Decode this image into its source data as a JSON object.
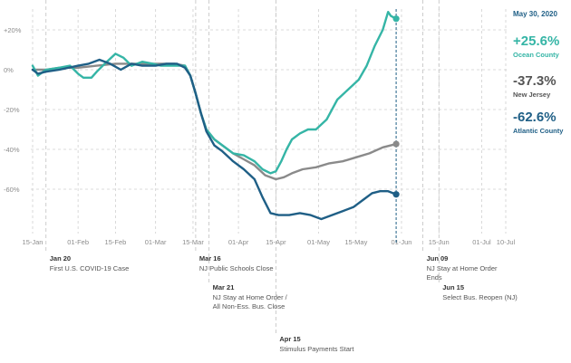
{
  "colors": {
    "ocean": "#35b5a6",
    "nj": "#8a8a8a",
    "atlantic": "#1f5f86",
    "grid": "#d0d0d0",
    "event_line": "#c0c0c0",
    "date_line": "#1f5f86"
  },
  "legend": {
    "date": "May 30, 2020",
    "entries": [
      {
        "value": "+25.6%",
        "name": "Ocean County",
        "color": "#35b5a6"
      },
      {
        "value": "-37.3%",
        "name": "New Jersey",
        "color": "#555555"
      },
      {
        "value": "-62.6%",
        "name": "Atlantic County",
        "color": "#1f5f86"
      }
    ]
  },
  "chart_data": {
    "type": "line",
    "title": "",
    "xlabel": "",
    "ylabel": "",
    "ylim": [
      -80,
      30
    ],
    "y_ticks": [
      20,
      0,
      -20,
      -40,
      -60
    ],
    "y_tick_labels": [
      "+20%",
      "0%",
      "-20%",
      "-40%",
      "-60%"
    ],
    "x_ticks": [
      "2020-01-15",
      "2020-02-01",
      "2020-02-15",
      "2020-03-01",
      "2020-03-15",
      "2020-04-01",
      "2020-04-15",
      "2020-05-01",
      "2020-05-15",
      "2020-06-01",
      "2020-06-15",
      "2020-07-01",
      "2020-07-10"
    ],
    "x_tick_labels": [
      "15-Jan",
      "01-Feb",
      "15-Feb",
      "01-Mar",
      "15-Mar",
      "01-Apr",
      "15-Apr",
      "01-May",
      "15-May",
      "01-Jun",
      "15-Jun",
      "01-Jul",
      "10-Jul"
    ],
    "grid": true,
    "end_date": "2020-05-30",
    "series": [
      {
        "name": "Ocean County",
        "color": "#35b5a6",
        "points": [
          [
            "2020-01-15",
            2
          ],
          [
            "2020-01-17",
            -3
          ],
          [
            "2020-01-20",
            0
          ],
          [
            "2020-01-25",
            1
          ],
          [
            "2020-01-29",
            2
          ],
          [
            "2020-02-01",
            -2
          ],
          [
            "2020-02-03",
            -4
          ],
          [
            "2020-02-06",
            -4
          ],
          [
            "2020-02-08",
            -1
          ],
          [
            "2020-02-11",
            3
          ],
          [
            "2020-02-15",
            8
          ],
          [
            "2020-02-18",
            6
          ],
          [
            "2020-02-21",
            2
          ],
          [
            "2020-02-25",
            4
          ],
          [
            "2020-02-29",
            3
          ],
          [
            "2020-03-03",
            2
          ],
          [
            "2020-03-06",
            2
          ],
          [
            "2020-03-09",
            2
          ],
          [
            "2020-03-12",
            2
          ],
          [
            "2020-03-14",
            -3
          ],
          [
            "2020-03-16",
            -12
          ],
          [
            "2020-03-18",
            -22
          ],
          [
            "2020-03-20",
            -30
          ],
          [
            "2020-03-23",
            -35
          ],
          [
            "2020-03-26",
            -38
          ],
          [
            "2020-03-30",
            -42
          ],
          [
            "2020-04-03",
            -43
          ],
          [
            "2020-04-07",
            -46
          ],
          [
            "2020-04-10",
            -50
          ],
          [
            "2020-04-13",
            -52
          ],
          [
            "2020-04-15",
            -51
          ],
          [
            "2020-04-17",
            -46
          ],
          [
            "2020-04-19",
            -40
          ],
          [
            "2020-04-21",
            -35
          ],
          [
            "2020-04-24",
            -32
          ],
          [
            "2020-04-27",
            -30
          ],
          [
            "2020-04-30",
            -30
          ],
          [
            "2020-05-04",
            -25
          ],
          [
            "2020-05-08",
            -15
          ],
          [
            "2020-05-12",
            -10
          ],
          [
            "2020-05-16",
            -5
          ],
          [
            "2020-05-19",
            2
          ],
          [
            "2020-05-22",
            12
          ],
          [
            "2020-05-25",
            20
          ],
          [
            "2020-05-27",
            29
          ],
          [
            "2020-05-28",
            27
          ],
          [
            "2020-05-30",
            25.6
          ]
        ]
      },
      {
        "name": "New Jersey",
        "color": "#8a8a8a",
        "points": [
          [
            "2020-01-15",
            0
          ],
          [
            "2020-01-20",
            0
          ],
          [
            "2020-01-25",
            1
          ],
          [
            "2020-02-01",
            1
          ],
          [
            "2020-02-08",
            2
          ],
          [
            "2020-02-15",
            3
          ],
          [
            "2020-02-22",
            3
          ],
          [
            "2020-03-01",
            3
          ],
          [
            "2020-03-08",
            3
          ],
          [
            "2020-03-12",
            2
          ],
          [
            "2020-03-14",
            -3
          ],
          [
            "2020-03-16",
            -12
          ],
          [
            "2020-03-18",
            -22
          ],
          [
            "2020-03-20",
            -30
          ],
          [
            "2020-03-23",
            -35
          ],
          [
            "2020-03-26",
            -38
          ],
          [
            "2020-03-30",
            -42
          ],
          [
            "2020-04-03",
            -45
          ],
          [
            "2020-04-07",
            -48
          ],
          [
            "2020-04-11",
            -53
          ],
          [
            "2020-04-15",
            -55
          ],
          [
            "2020-04-18",
            -54
          ],
          [
            "2020-04-21",
            -52
          ],
          [
            "2020-04-25",
            -50
          ],
          [
            "2020-04-30",
            -49
          ],
          [
            "2020-05-05",
            -47
          ],
          [
            "2020-05-10",
            -46
          ],
          [
            "2020-05-15",
            -44
          ],
          [
            "2020-05-20",
            -42
          ],
          [
            "2020-05-25",
            -39
          ],
          [
            "2020-05-30",
            -37.3
          ]
        ]
      },
      {
        "name": "Atlantic County",
        "color": "#1f5f86",
        "points": [
          [
            "2020-01-15",
            0
          ],
          [
            "2020-01-17",
            -2
          ],
          [
            "2020-01-20",
            -1
          ],
          [
            "2020-01-25",
            0
          ],
          [
            "2020-02-01",
            2
          ],
          [
            "2020-02-05",
            3
          ],
          [
            "2020-02-09",
            5
          ],
          [
            "2020-02-13",
            3
          ],
          [
            "2020-02-17",
            0
          ],
          [
            "2020-02-21",
            3
          ],
          [
            "2020-02-25",
            2
          ],
          [
            "2020-03-01",
            2
          ],
          [
            "2020-03-05",
            3
          ],
          [
            "2020-03-09",
            3
          ],
          [
            "2020-03-12",
            1
          ],
          [
            "2020-03-14",
            -3
          ],
          [
            "2020-03-16",
            -12
          ],
          [
            "2020-03-18",
            -22
          ],
          [
            "2020-03-20",
            -31
          ],
          [
            "2020-03-23",
            -38
          ],
          [
            "2020-03-26",
            -41
          ],
          [
            "2020-03-30",
            -46
          ],
          [
            "2020-04-03",
            -50
          ],
          [
            "2020-04-07",
            -55
          ],
          [
            "2020-04-10",
            -64
          ],
          [
            "2020-04-13",
            -72
          ],
          [
            "2020-04-16",
            -73
          ],
          [
            "2020-04-20",
            -73
          ],
          [
            "2020-04-24",
            -72
          ],
          [
            "2020-04-28",
            -73
          ],
          [
            "2020-05-02",
            -75
          ],
          [
            "2020-05-06",
            -73
          ],
          [
            "2020-05-10",
            -71
          ],
          [
            "2020-05-14",
            -69
          ],
          [
            "2020-05-18",
            -65
          ],
          [
            "2020-05-21",
            -62
          ],
          [
            "2020-05-24",
            -61
          ],
          [
            "2020-05-27",
            -61
          ],
          [
            "2020-05-30",
            -62.6
          ]
        ]
      }
    ],
    "annotations": [
      {
        "date": "2020-01-20",
        "label_date": "Jan 20",
        "lines": [
          "First U.S. COVID-19 Case"
        ],
        "row": 0
      },
      {
        "date": "2020-03-16",
        "label_date": "Mar 16",
        "lines": [
          "NJ Public Schools Close"
        ],
        "row": 0
      },
      {
        "date": "2020-03-21",
        "label_date": "Mar 21",
        "lines": [
          "NJ Stay at Home Order /",
          "All Non-Ess. Bus. Close"
        ],
        "row": 1
      },
      {
        "date": "2020-04-15",
        "label_date": "Apr 15",
        "lines": [
          "Stimulus Payments Start"
        ],
        "row": 2
      },
      {
        "date": "2020-06-09",
        "label_date": "Jun 09",
        "lines": [
          "NJ Stay at Home Order",
          "Ends"
        ],
        "row": 0
      },
      {
        "date": "2020-06-15",
        "label_date": "Jun 15",
        "lines": [
          "Select Bus. Reopen (NJ)"
        ],
        "row": 1
      }
    ]
  }
}
